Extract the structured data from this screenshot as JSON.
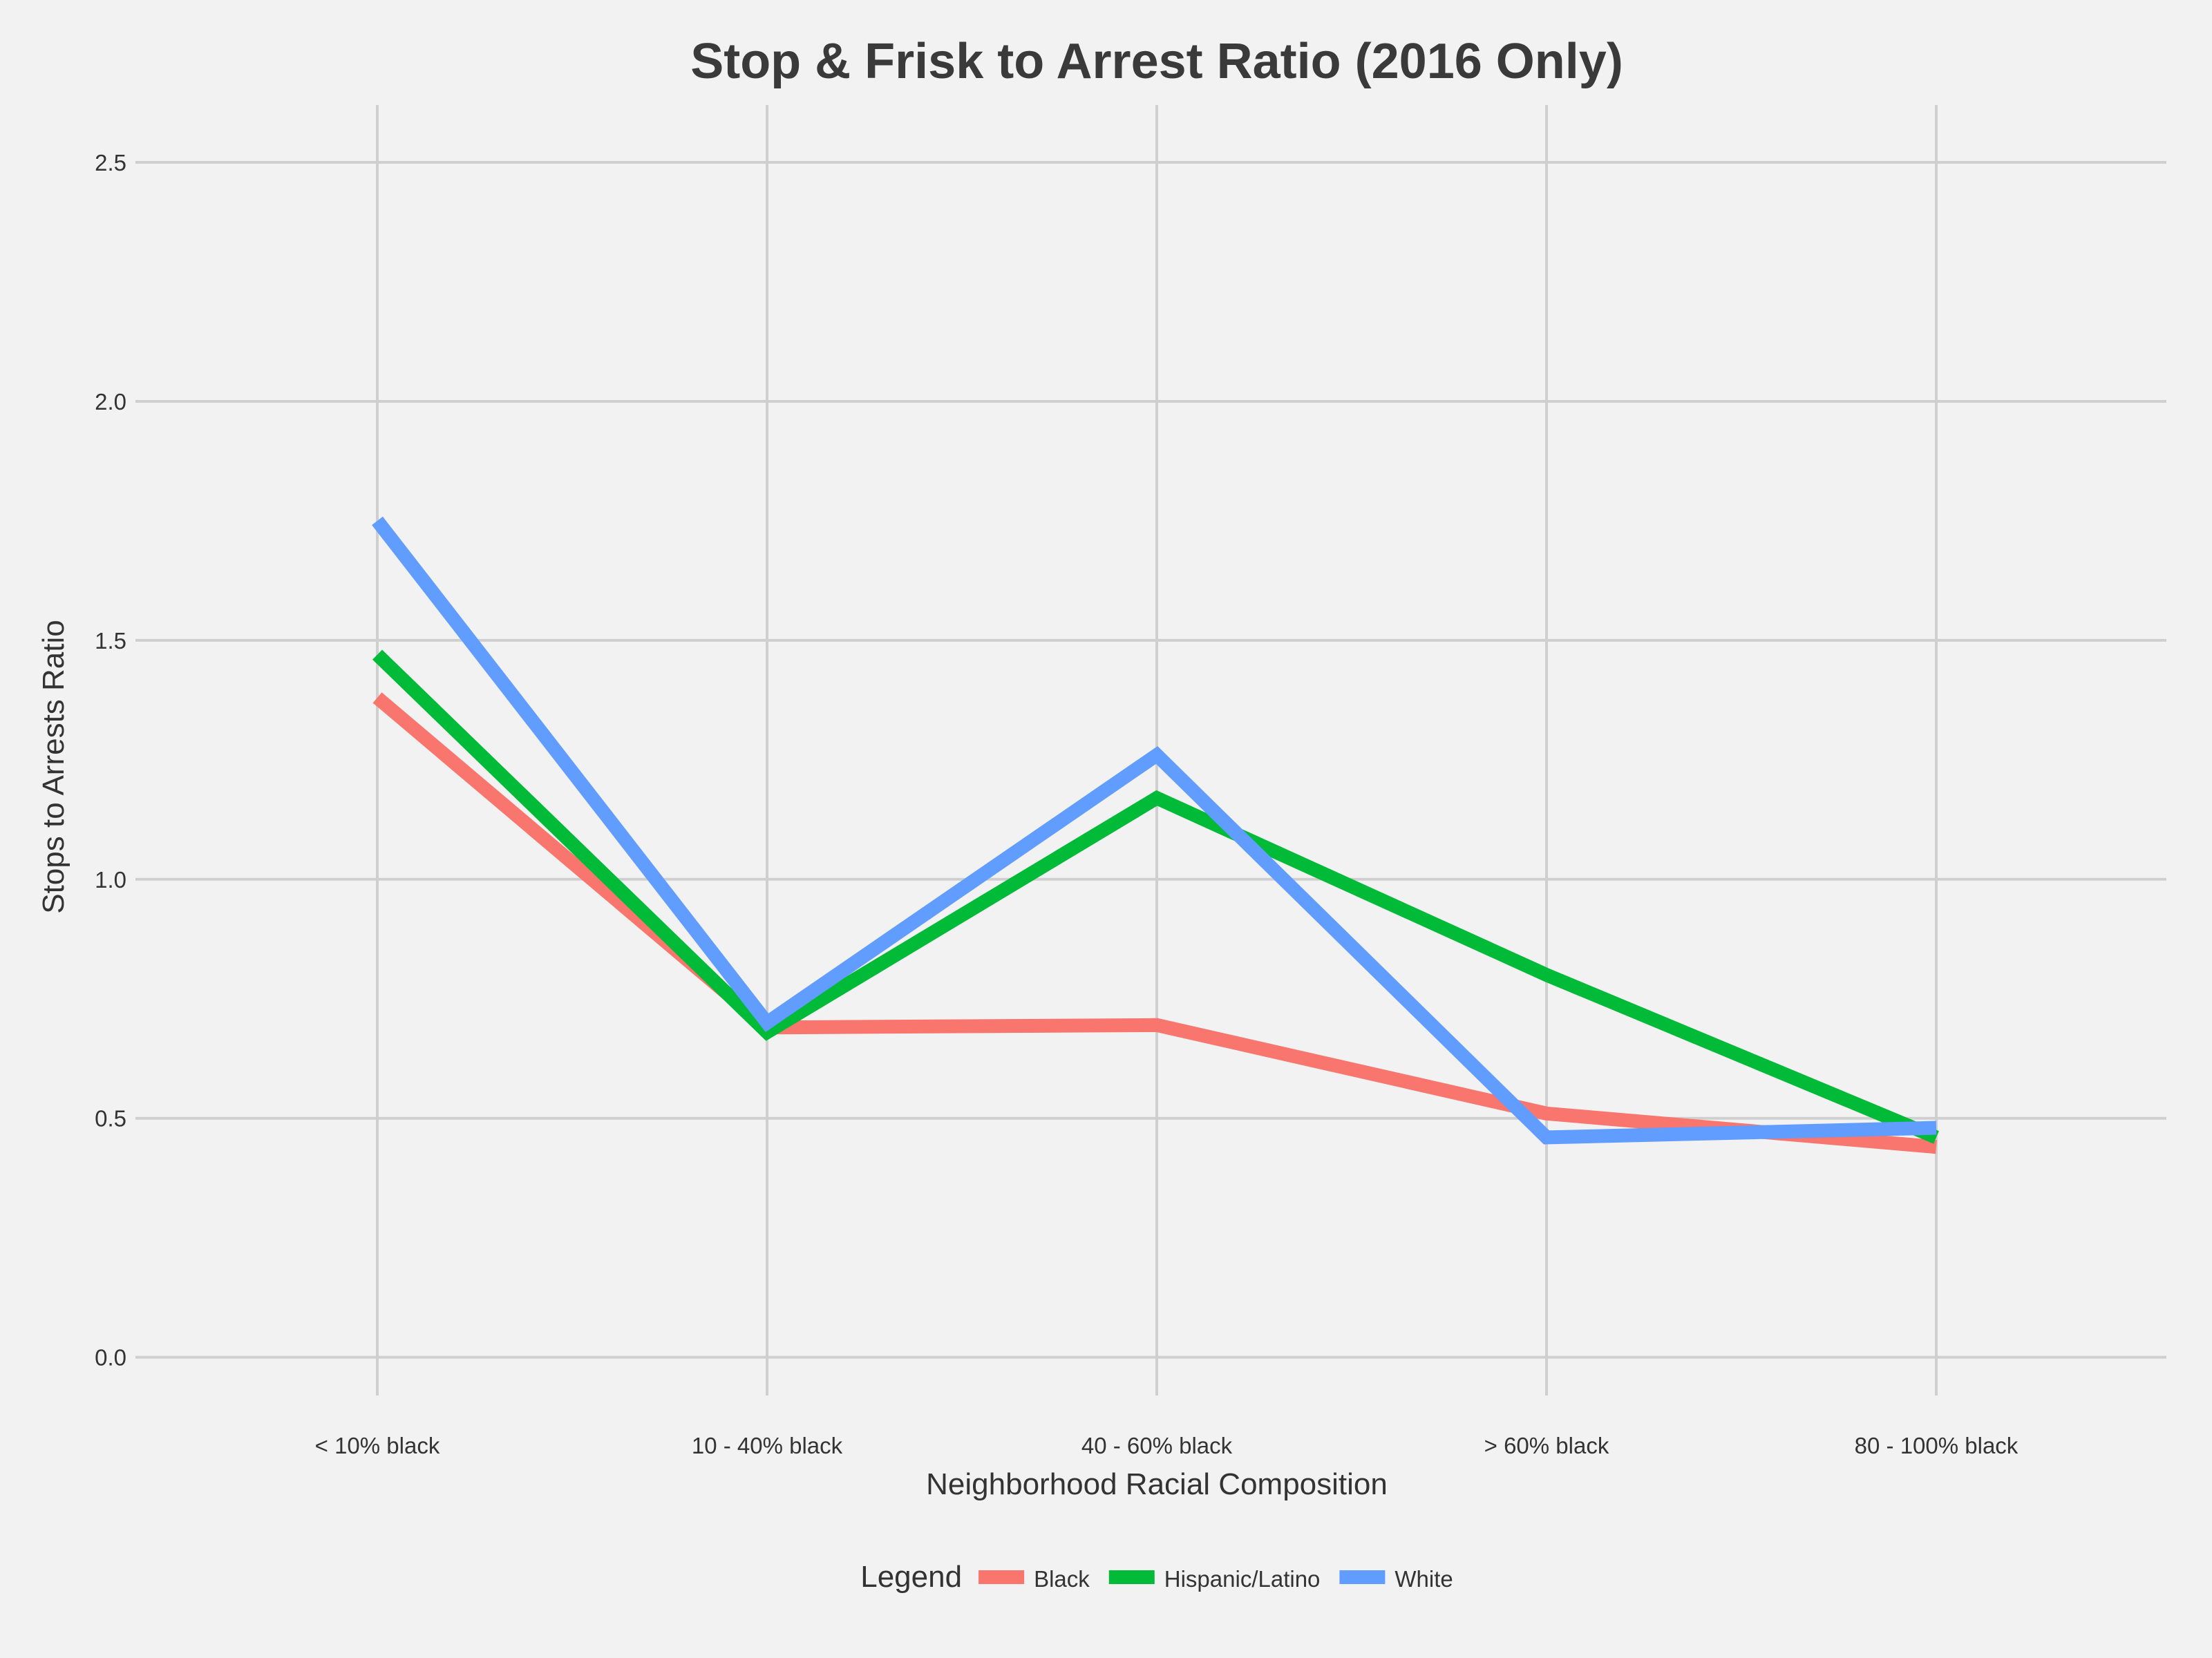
{
  "chart_data": {
    "type": "line",
    "title": "Stop & Frisk to Arrest Ratio (2016 Only)",
    "xlabel": "Neighborhood Racial Composition",
    "ylabel": "Stops to Arrests Ratio",
    "categories": [
      "< 10% black",
      "10 - 40% black",
      "40 - 60% black",
      "> 60% black",
      "80 - 100% black"
    ],
    "ylim": [
      -0.08,
      2.62
    ],
    "yticks": [
      "0.0",
      "0.5",
      "1.0",
      "1.5",
      "2.0",
      "2.5"
    ],
    "ytick_values": [
      0.0,
      0.5,
      1.0,
      1.5,
      2.0,
      2.5
    ],
    "grid": true,
    "legend": {
      "title": "Legend",
      "placement": "bottom"
    },
    "series": [
      {
        "name": "Black",
        "color": "#f8766d",
        "values": [
          1.38,
          0.69,
          0.695,
          0.51,
          0.44
        ]
      },
      {
        "name": "Hispanic/Latino",
        "color": "#00ba38",
        "values": [
          1.47,
          0.68,
          1.17,
          0.8,
          0.46
        ]
      },
      {
        "name": "White",
        "color": "#619cff",
        "values": [
          1.75,
          0.7,
          1.26,
          0.46,
          0.48
        ]
      }
    ]
  }
}
